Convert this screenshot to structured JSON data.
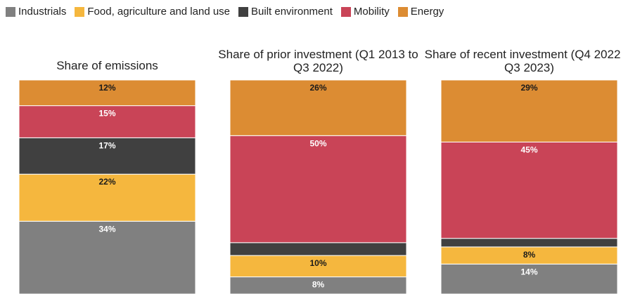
{
  "chart_data": {
    "type": "stacked_bar",
    "categories": [
      "Share of emissions",
      "Share of prior investment (Q1 2013 to Q3 2022)",
      "Share of recent investment (Q4 2022 to Q3 2023)"
    ],
    "ylim": [
      0,
      100
    ],
    "series": [
      {
        "name": "Industrials",
        "color": "#808080",
        "label_color": "#ffffff",
        "values": [
          34,
          8,
          14
        ],
        "value_labels": [
          "34%",
          "8%",
          "14%"
        ]
      },
      {
        "name": "Food, agriculture and land use",
        "color": "#f5b73e",
        "label_color": "#1a1a1a",
        "values": [
          22,
          10,
          8
        ],
        "value_labels": [
          "22%",
          "10%",
          "8%"
        ]
      },
      {
        "name": "Built environment",
        "color": "#404040",
        "label_color": "#ffffff",
        "values": [
          17,
          6,
          4
        ],
        "value_labels": [
          "17%",
          null,
          null
        ]
      },
      {
        "name": "Mobility",
        "color": "#c94457",
        "label_color": "#ffffff",
        "values": [
          15,
          50,
          45
        ],
        "value_labels": [
          "15%",
          "50%",
          "45%"
        ]
      },
      {
        "name": "Energy",
        "color": "#dc8c33",
        "label_color": "#1a1a1a",
        "values": [
          12,
          26,
          29
        ],
        "value_labels": [
          "12%",
          "26%",
          "29%"
        ]
      }
    ]
  }
}
